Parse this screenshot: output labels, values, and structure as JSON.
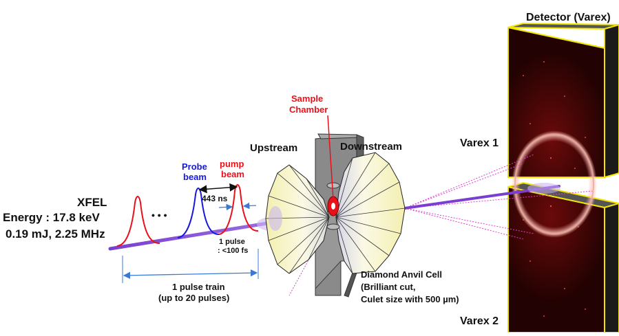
{
  "labels": {
    "detector_title": "Detector (Varex)",
    "varex1": "Varex 1",
    "varex2": "Varex 2",
    "sample_chamber_line1": "Sample",
    "sample_chamber_line2": "Chamber",
    "upstream": "Upstream",
    "downstream": "Downstream",
    "xfel": "XFEL",
    "energy": "Energy : 17.8 keV",
    "power": "0.19 mJ, 2.25 MHz",
    "probe_line1": "Probe",
    "probe_line2": "beam",
    "pump_line1": "pump",
    "pump_line2": "beam",
    "spacing": "443 ns",
    "ellipsis": "• • •",
    "pulse_line1": "1 pulse",
    "pulse_line2": ": <100 fs",
    "train_line1": "1 pulse train",
    "train_line2": "(up to 20 pulses)",
    "dac_line1": "Diamond Anvil Cell",
    "dac_line2": "(Brilliant cut,",
    "dac_line3": "Culet size with 500 µm)"
  },
  "colors": {
    "text": "#111111",
    "sample": "#e8101a",
    "probe": "#1717e0",
    "pump": "#e8101a",
    "beam": "#7a3fd0",
    "arrow": "#3a7ad5",
    "detector_face": "#2a0303",
    "detector_frame": "#f2e600",
    "detector_side": "#1a1a1a"
  }
}
